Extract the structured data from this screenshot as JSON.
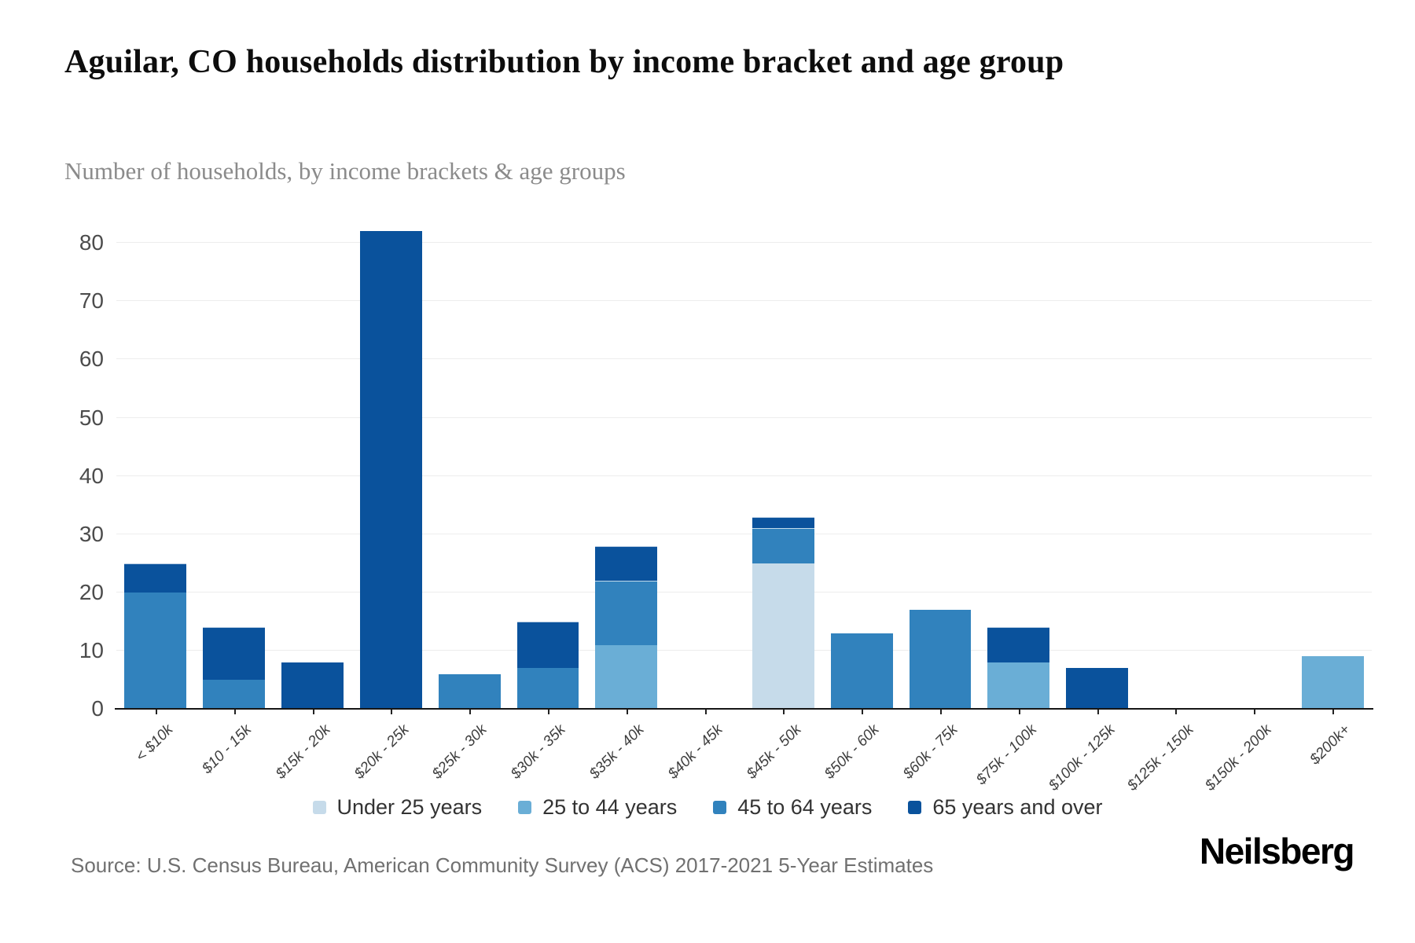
{
  "header": {
    "title": "Aguilar, CO households distribution by income bracket and age group",
    "subtitle": "Number of households, by income brackets & age groups"
  },
  "footer": {
    "source": "Source: U.S. Census Bureau, American Community Survey (ACS) 2017-2021 5-Year Estimates",
    "brand": "Neilsberg"
  },
  "chart_data": {
    "type": "bar",
    "stacked": true,
    "title": "Aguilar, CO households distribution by income bracket and age group",
    "subtitle": "Number of households, by income brackets & age groups",
    "categories": [
      "< $10k",
      "$10 - 15k",
      "$15k - 20k",
      "$20k - 25k",
      "$25k - 30k",
      "$30k - 35k",
      "$35k - 40k",
      "$40k - 45k",
      "$45k - 50k",
      "$50k - 60k",
      "$60k - 75k",
      "$75k - 100k",
      "$100k - 125k",
      "$125k - 150k",
      "$150k - 200k",
      "$200k+"
    ],
    "series": [
      {
        "name": "Under 25 years",
        "color": "#c6dbea",
        "values": [
          0,
          0,
          0,
          0,
          0,
          0,
          0,
          0,
          25,
          0,
          0,
          0,
          0,
          0,
          0,
          0
        ]
      },
      {
        "name": "25 to 44 years",
        "color": "#6aaed6",
        "values": [
          0,
          0,
          0,
          0,
          0,
          0,
          11,
          0,
          0,
          0,
          0,
          8,
          0,
          0,
          0,
          9
        ]
      },
      {
        "name": "45 to 64 years",
        "color": "#3182bd",
        "values": [
          20,
          5,
          0,
          0,
          6,
          7,
          11,
          0,
          6,
          13,
          17,
          0,
          0,
          0,
          0,
          0
        ]
      },
      {
        "name": "65 years and over",
        "color": "#0a529c",
        "values": [
          5,
          9,
          8,
          82,
          0,
          8,
          6,
          0,
          2,
          0,
          0,
          6,
          7,
          0,
          0,
          0
        ]
      }
    ],
    "totals": [
      25,
      14,
      8,
      82,
      6,
      15,
      28,
      0,
      33,
      13,
      17,
      14,
      7,
      0,
      0,
      9
    ],
    "xlabel": "",
    "ylabel": "",
    "yticks": [
      0,
      10,
      20,
      30,
      40,
      50,
      60,
      70,
      80
    ],
    "ylim": [
      0,
      88
    ],
    "grid": true,
    "legend_position": "bottom",
    "axis_color": "#161616",
    "gridline_color": "#ededed"
  }
}
